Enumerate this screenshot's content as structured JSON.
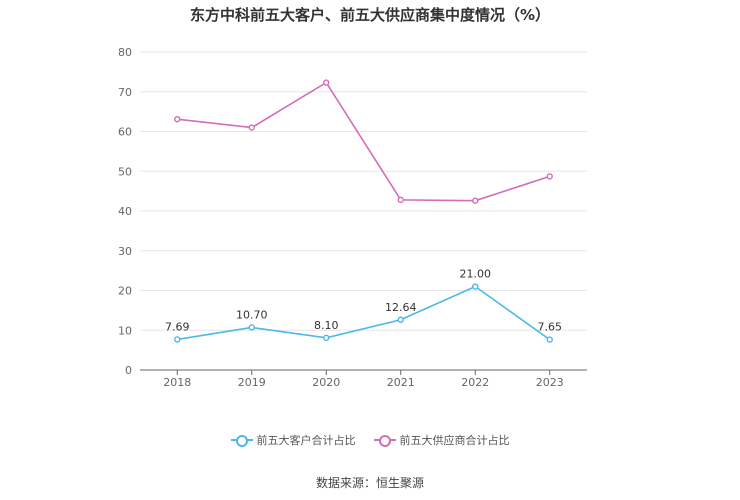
{
  "title": "东方中科前五大客户、前五大供应商集中度情况（%）",
  "source": "数据来源：恒生聚源",
  "chart_data": {
    "type": "line",
    "title": "东方中科前五大客户、前五大供应商集中度情况（%）",
    "categories": [
      "2018",
      "2019",
      "2020",
      "2021",
      "2022",
      "2023"
    ],
    "ylim": [
      0,
      80
    ],
    "yticks": [
      0,
      10,
      20,
      30,
      40,
      50,
      60,
      70,
      80
    ],
    "grid": true,
    "legend_position": "bottom",
    "series": [
      {
        "name": "前五大客户合计占比",
        "color": "#4bb8e8",
        "values": [
          7.69,
          10.7,
          8.1,
          12.64,
          21.0,
          7.65
        ],
        "labels": [
          "7.69",
          "10.70",
          "8.10",
          "12.64",
          "21.00",
          "7.65"
        ],
        "show_labels": true
      },
      {
        "name": "前五大供应商合计占比",
        "color": "#d46cb8",
        "values": [
          63.1,
          61.0,
          72.3,
          42.8,
          42.6,
          48.7
        ],
        "show_labels": false
      }
    ]
  }
}
